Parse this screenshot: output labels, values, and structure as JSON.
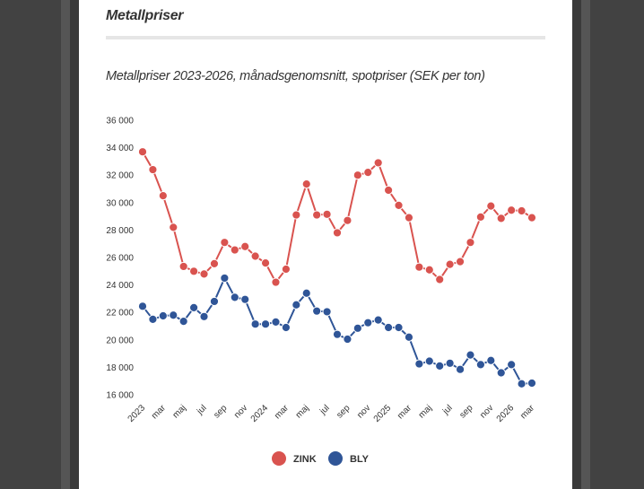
{
  "header": {
    "title": "Metallpriser"
  },
  "chart_data": {
    "type": "line",
    "title": "Metallpriser 2023-2026, månadsgenomsnitt, spotpriser (SEK per ton)",
    "xlabel": "",
    "ylabel": "",
    "ylim": [
      16000,
      36000
    ],
    "yticks": [
      "16 000",
      "18 000",
      "20 000",
      "22 000",
      "24 000",
      "26 000",
      "28 000",
      "30 000",
      "32 000",
      "34 000",
      "36 000"
    ],
    "ytick_values": [
      16000,
      18000,
      20000,
      22000,
      24000,
      26000,
      28000,
      30000,
      32000,
      34000,
      36000
    ],
    "x": [
      "2023-01",
      "2023-02",
      "2023-03",
      "2023-04",
      "2023-05",
      "2023-06",
      "2023-07",
      "2023-08",
      "2023-09",
      "2023-10",
      "2023-11",
      "2023-12",
      "2024-01",
      "2024-02",
      "2024-03",
      "2024-04",
      "2024-05",
      "2024-06",
      "2024-07",
      "2024-08",
      "2024-09",
      "2024-10",
      "2024-11",
      "2024-12",
      "2025-01",
      "2025-02",
      "2025-03",
      "2025-04",
      "2025-05",
      "2025-06",
      "2025-07",
      "2025-08",
      "2025-09",
      "2025-10",
      "2025-11",
      "2025-12",
      "2026-01",
      "2026-02",
      "2026-03"
    ],
    "xticks": [
      "2023",
      "mar",
      "maj",
      "jul",
      "sep",
      "nov",
      "2024",
      "mar",
      "maj",
      "jul",
      "sep",
      "nov",
      "2025",
      "mar",
      "maj",
      "jul",
      "sep",
      "nov",
      "2026",
      "mar"
    ],
    "grid": false,
    "legend_position": "bottom",
    "series": [
      {
        "name": "ZINK",
        "color": "#d9534f",
        "values": [
          33700,
          32400,
          30500,
          28200,
          25350,
          25000,
          24800,
          25550,
          27100,
          26550,
          26800,
          26100,
          25600,
          24200,
          25150,
          29100,
          31350,
          29100,
          29150,
          27800,
          28700,
          32000,
          32200,
          32900,
          30900,
          29800,
          28900,
          25300,
          25100,
          24400,
          25500,
          25700,
          27100,
          28950,
          29750,
          28850,
          29450,
          29400,
          28900
        ]
      },
      {
        "name": "BLY",
        "color": "#2f5597",
        "values": [
          22450,
          21500,
          21750,
          21800,
          21350,
          22350,
          21700,
          22800,
          24500,
          23100,
          22950,
          21150,
          21150,
          21300,
          20900,
          22550,
          23400,
          22100,
          22050,
          20400,
          20050,
          20850,
          21250,
          21450,
          20900,
          20900,
          20200,
          18250,
          18450,
          18100,
          18300,
          17850,
          18900,
          18200,
          18500,
          17600,
          18200,
          16800,
          16850
        ]
      }
    ]
  }
}
